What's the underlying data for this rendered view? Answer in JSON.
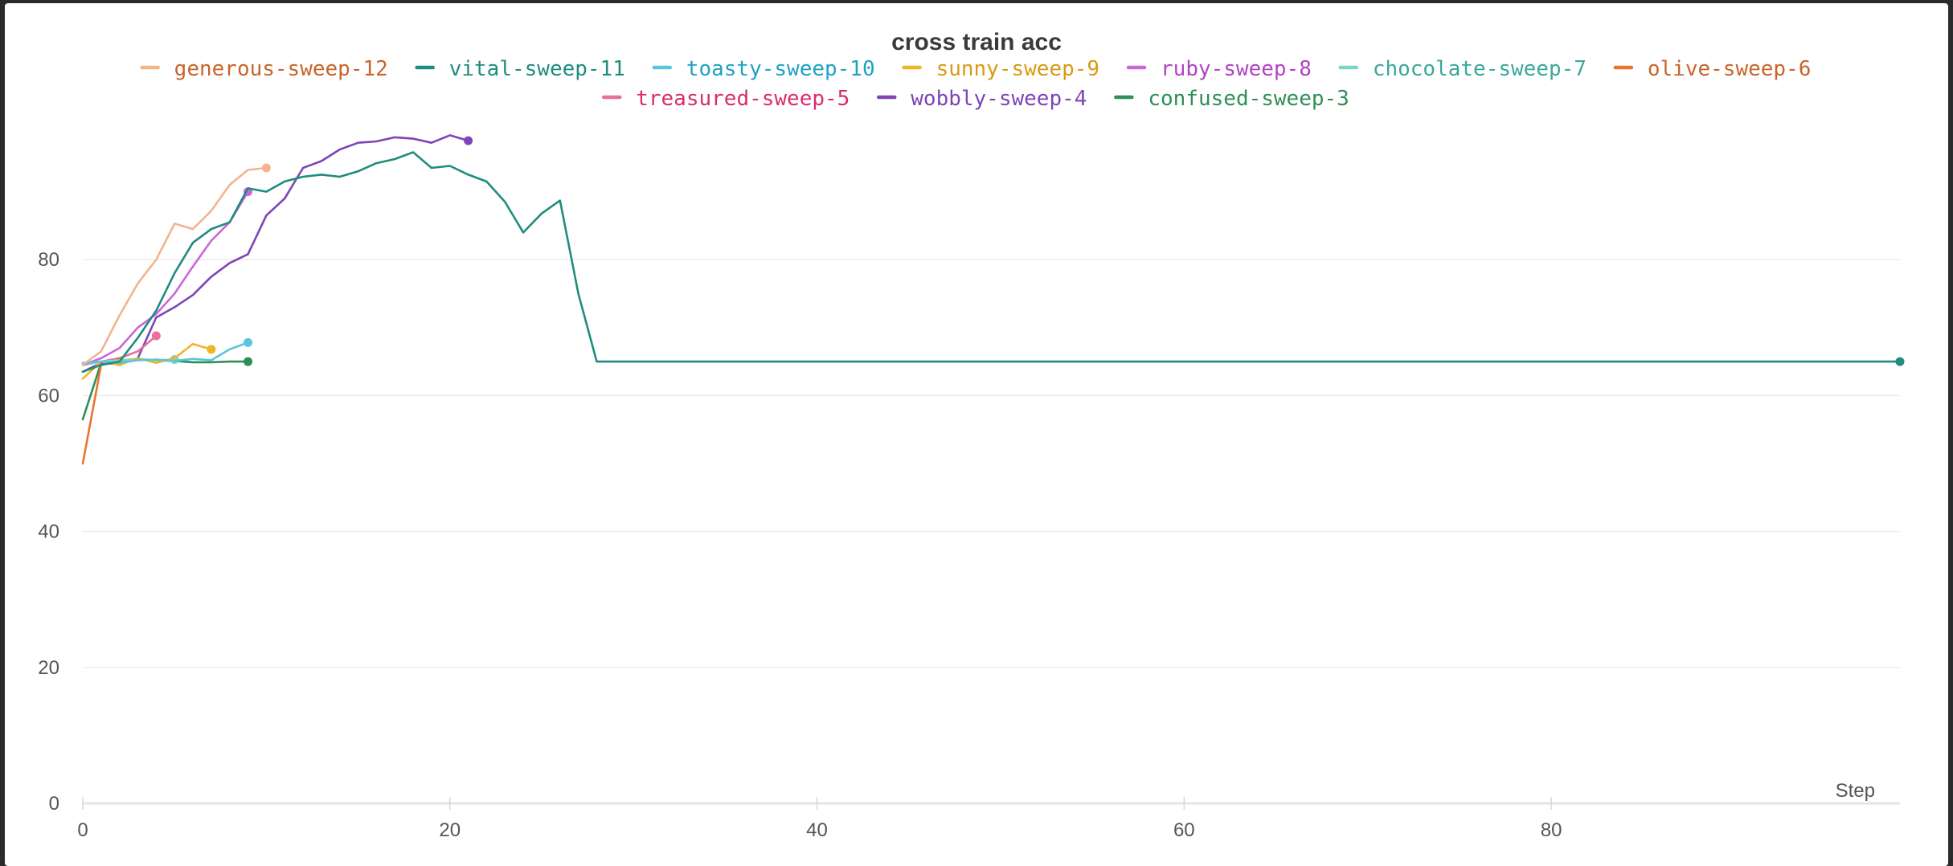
{
  "chart_data": {
    "type": "line",
    "title": "cross train acc",
    "xlabel": "Step",
    "ylabel": "",
    "xlim": [
      0,
      99
    ],
    "ylim": [
      0,
      100
    ],
    "x_ticks": [
      0,
      20,
      40,
      60,
      80
    ],
    "y_ticks": [
      0,
      20,
      40,
      60,
      80
    ],
    "grid": "horizontal",
    "legend_position": "top",
    "series": [
      {
        "name": "generous-sweep-12",
        "color": "#f2b48e",
        "text_color": "#c8642a",
        "x": [
          0,
          1,
          2,
          3,
          4,
          5,
          6,
          7,
          8,
          9,
          10
        ],
        "y": [
          64.5,
          66.5,
          71.8,
          76.5,
          80,
          85.3,
          84.5,
          87.2,
          91,
          93.2,
          93.5
        ]
      },
      {
        "name": "vital-sweep-11",
        "color": "#1f8c80",
        "text_color": "#1f8c80",
        "x": [
          0,
          1,
          2,
          3,
          4,
          5,
          6,
          7,
          8,
          9,
          10,
          11,
          12,
          13,
          14,
          15,
          16,
          17,
          18,
          19,
          20,
          21,
          22,
          23,
          24,
          25,
          26,
          27,
          28,
          99
        ],
        "y": [
          63.5,
          64.5,
          65,
          68.5,
          72.5,
          78,
          82.5,
          84.5,
          85.5,
          90.5,
          90,
          91.5,
          92.2,
          92.5,
          92.2,
          93,
          94.2,
          94.8,
          95.8,
          93.5,
          93.8,
          92.5,
          91.5,
          88.5,
          84,
          86.8,
          88.7,
          75,
          65,
          65
        ]
      },
      {
        "name": "toasty-sweep-10",
        "color": "#5bc5dc",
        "text_color": "#1ea2c4",
        "x": [
          0,
          1,
          2,
          3,
          4,
          5,
          6,
          7,
          8,
          9
        ],
        "y": [
          64.8,
          65,
          64.8,
          65.2,
          65.3,
          65.1,
          65.4,
          65.2,
          66.8,
          67.8
        ]
      },
      {
        "name": "sunny-sweep-9",
        "color": "#f0b429",
        "text_color": "#d99a12",
        "x": [
          0,
          1,
          2,
          3,
          4,
          5,
          6,
          7
        ],
        "y": [
          62.5,
          65,
          64.5,
          65.5,
          64.8,
          65.5,
          67.6,
          66.8
        ]
      },
      {
        "name": "ruby-sweep-8",
        "color": "#cc66d8",
        "text_color": "#b044c2",
        "x": [
          0,
          1,
          2,
          3,
          4,
          5,
          6,
          7,
          8,
          9
        ],
        "y": [
          64.5,
          65.5,
          67,
          70,
          72,
          75,
          79,
          82.8,
          85.5,
          90
        ]
      },
      {
        "name": "chocolate-sweep-7",
        "color": "#7fd4c4",
        "text_color": "#3aa89a",
        "x": [
          0,
          1,
          2,
          3,
          4,
          5
        ],
        "y": [
          64.5,
          65,
          65.2,
          65.4,
          65.2,
          65.3
        ]
      },
      {
        "name": "olive-sweep-6",
        "color": "#e8742f",
        "text_color": "#c8642a",
        "x": [
          0,
          1,
          2
        ],
        "y": [
          50,
          64.5,
          65
        ]
      },
      {
        "name": "treasured-sweep-5",
        "color": "#e8709a",
        "text_color": "#d82d6e",
        "x": [
          0,
          1,
          2,
          3,
          4
        ],
        "y": [
          64.5,
          65,
          65.5,
          66.5,
          68.8
        ]
      },
      {
        "name": "wobbly-sweep-4",
        "color": "#7e44b8",
        "text_color": "#7e44b8",
        "x": [
          0,
          1,
          2,
          3,
          4,
          5,
          6,
          7,
          8,
          9,
          10,
          11,
          12,
          13,
          14,
          15,
          16,
          17,
          18,
          19,
          20,
          21
        ],
        "y": [
          63.5,
          64.8,
          64.6,
          65.5,
          71.5,
          73,
          74.8,
          77.5,
          79.5,
          80.8,
          86.5,
          89,
          93.5,
          94.5,
          96.2,
          97.2,
          97.4,
          98,
          97.8,
          97.2,
          98.3,
          97.5
        ]
      },
      {
        "name": "confused-sweep-3",
        "color": "#2e8f55",
        "text_color": "#2e8f55",
        "x": [
          0,
          1,
          2,
          3,
          4,
          5,
          6,
          7,
          8,
          9
        ],
        "y": [
          56.5,
          64.8,
          65.2,
          65.3,
          65.2,
          65.1,
          64.9,
          64.9,
          65,
          65
        ]
      }
    ]
  }
}
